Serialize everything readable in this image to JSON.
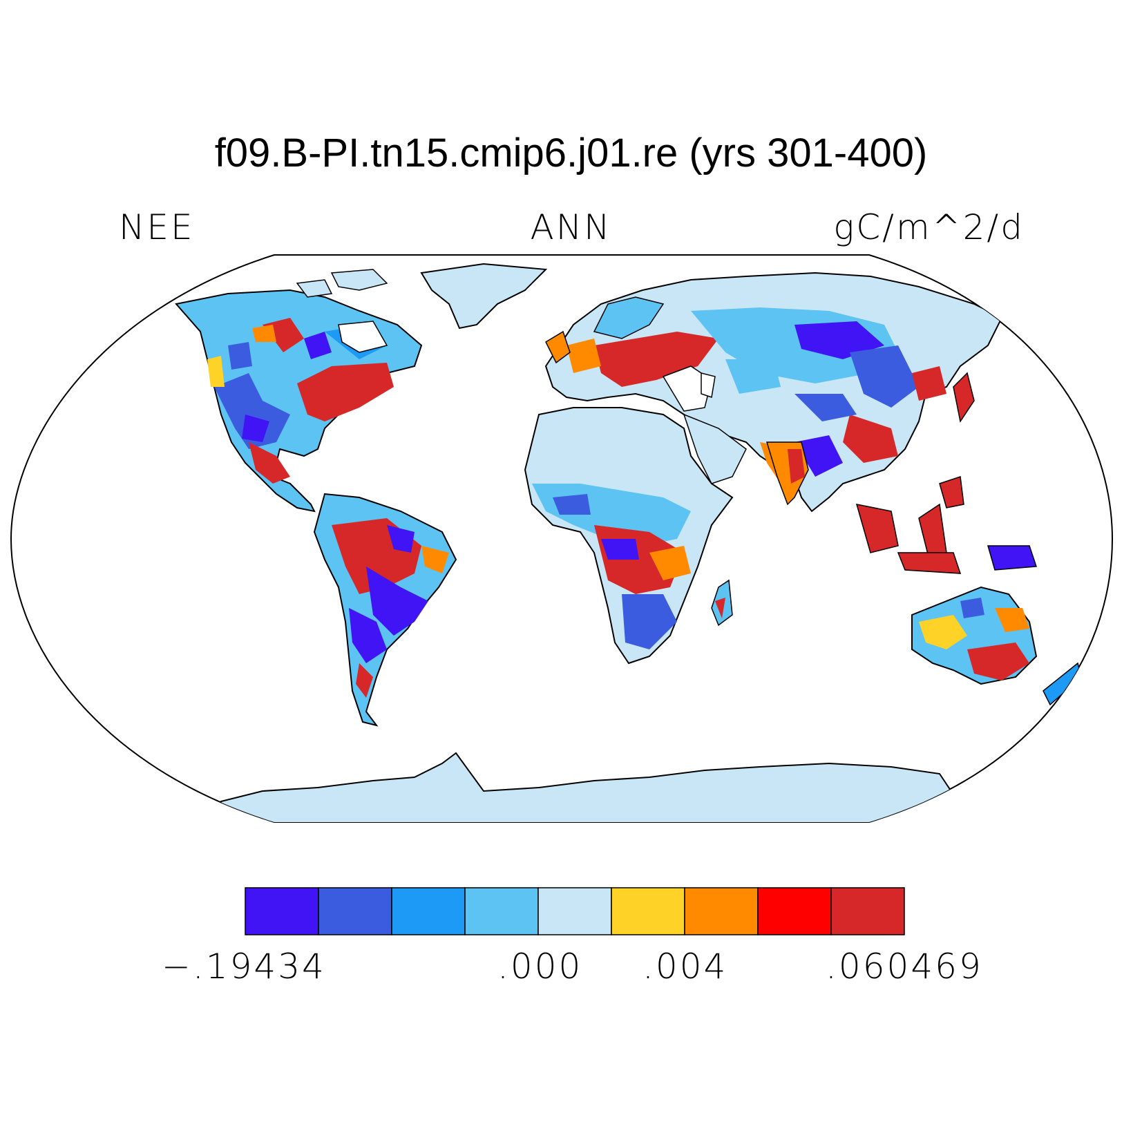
{
  "title": "f09.B-PI.tn15.cmip6.j01.re (yrs 301-400)",
  "variable": "NEE",
  "season": "ANN",
  "units": "gC/m^2/d",
  "projection": "Robinson",
  "colorbar": {
    "colors": [
      "#4014f5",
      "#3c5ce0",
      "#1c9af5",
      "#5cc3f2",
      "#c8e6f6",
      "#ffd228",
      "#ff8a00",
      "#ff0000",
      "#d62828"
    ],
    "labels": [
      "−.19434",
      ".000",
      ".004",
      ".060469"
    ]
  }
}
